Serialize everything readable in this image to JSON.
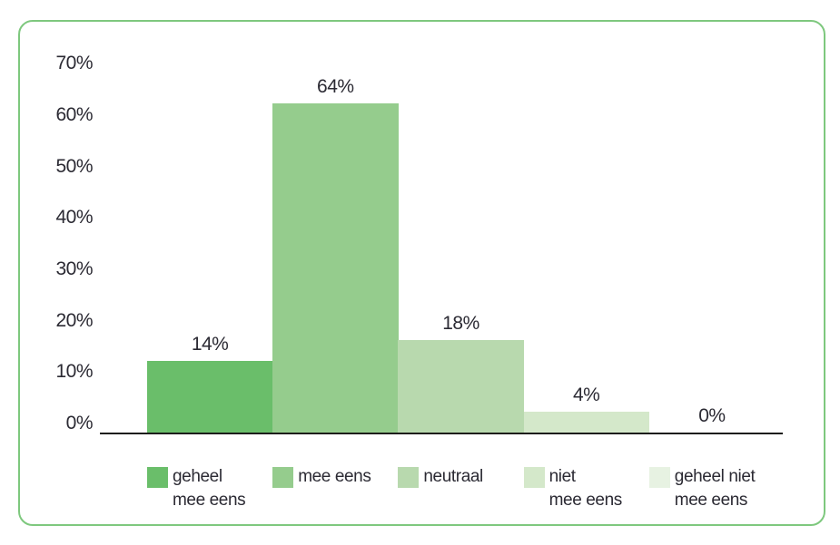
{
  "chart_data": {
    "type": "bar",
    "categories": [
      "geheel mee eens",
      "mee eens",
      "neutraal",
      "niet mee eens",
      "geheel niet mee eens"
    ],
    "values": [
      14,
      64,
      18,
      4,
      0
    ],
    "value_labels": [
      "14%",
      "64%",
      "18%",
      "4%",
      "0%"
    ],
    "bar_colors": [
      "#6abe6a",
      "#95cc8d",
      "#b8d9ae",
      "#d4e8ca",
      "#e7f2e2"
    ],
    "title": "",
    "xlabel": "",
    "ylabel": "",
    "ylim": [
      0,
      70
    ],
    "yticks": [
      "70%",
      "60%",
      "50%",
      "40%",
      "30%",
      "20%",
      "10%",
      "0%"
    ],
    "grid": false,
    "legend_position": "bottom",
    "legend_entries": [
      {
        "lines": [
          "geheel",
          "mee eens"
        ]
      },
      {
        "lines": [
          "mee eens"
        ]
      },
      {
        "lines": [
          "neutraal"
        ]
      },
      {
        "lines": [
          "niet",
          "mee eens"
        ]
      },
      {
        "lines": [
          "geheel niet",
          "mee eens"
        ]
      }
    ]
  },
  "style": {
    "frame_border_color": "#7ec87e",
    "axis_color": "#1d1d1b",
    "text_color": "#2b2a33"
  }
}
